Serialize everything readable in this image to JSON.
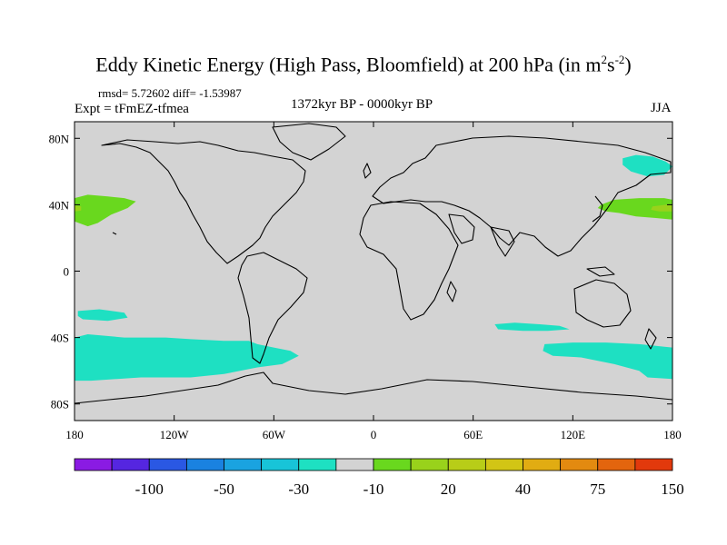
{
  "title": {
    "main": "Eddy Kinetic Energy (High Pass, Bloomfield) at 200 hPa (in m",
    "unit_a": "2",
    "unit_mid": "s",
    "unit_b": "-2",
    "close": ")"
  },
  "stats": "rmsd= 5.72602 diff= -1.53987",
  "experiment": "Expt = tFmEZ-tfmea",
  "period": "1372kyr BP - 0000kyr BP",
  "season": "JJA",
  "map": {
    "projection": "cylindrical-equidistant",
    "lon_range": [
      -180,
      180
    ],
    "lat_range": [
      -90,
      90
    ],
    "land_fill": "#d3d3d3",
    "coast_color": "#000000",
    "lat_ticks": [
      {
        "value": 80,
        "label": "80N"
      },
      {
        "value": 40,
        "label": "40N"
      },
      {
        "value": 0,
        "label": "0"
      },
      {
        "value": -40,
        "label": "40S"
      },
      {
        "value": -80,
        "label": "80S"
      }
    ],
    "lon_ticks": [
      {
        "value": -180,
        "label": "180"
      },
      {
        "value": -120,
        "label": "120W"
      },
      {
        "value": -60,
        "label": "60W"
      },
      {
        "value": 0,
        "label": "0"
      },
      {
        "value": 60,
        "label": "60E"
      },
      {
        "value": 120,
        "label": "120E"
      },
      {
        "value": 180,
        "label": "180"
      }
    ]
  },
  "colorbar": {
    "colors": [
      "#8a1be3",
      "#5526e0",
      "#2a58e3",
      "#1a82e0",
      "#1aa3e0",
      "#18c4d8",
      "#1ee0c2",
      "#d3d3d3",
      "#69d81e",
      "#99d21b",
      "#b8cd18",
      "#d2c515",
      "#e1ac12",
      "#e38a10",
      "#e3650e",
      "#e2390c"
    ],
    "labels": [
      {
        "after_box": 2,
        "text": "-100"
      },
      {
        "after_box": 4,
        "text": "-50"
      },
      {
        "after_box": 6,
        "text": "-30"
      },
      {
        "after_box": 8,
        "text": "-10"
      },
      {
        "after_box": 10,
        "text": "20"
      },
      {
        "after_box": 12,
        "text": "40"
      },
      {
        "after_box": 14,
        "text": "75"
      },
      {
        "after_box": 16,
        "text": "150"
      }
    ]
  },
  "anomaly_regions": [
    {
      "name": "north-pacific-east-positive",
      "level": "10 to 20",
      "color": "#69d81e",
      "points": [
        [
          -180,
          44
        ],
        [
          -172,
          46
        ],
        [
          -160,
          45
        ],
        [
          -150,
          44
        ],
        [
          -143,
          42
        ],
        [
          -148,
          38
        ],
        [
          -158,
          34
        ],
        [
          -166,
          29
        ],
        [
          -172,
          27
        ],
        [
          -180,
          30
        ]
      ]
    },
    {
      "name": "north-pacific-west-positive",
      "level": "10 to 20",
      "color": "#69d81e",
      "points": [
        [
          137,
          40
        ],
        [
          145,
          43
        ],
        [
          160,
          44
        ],
        [
          175,
          44
        ],
        [
          180,
          43
        ],
        [
          180,
          31
        ],
        [
          170,
          32
        ],
        [
          158,
          33
        ],
        [
          148,
          35
        ],
        [
          140,
          36
        ],
        [
          135,
          38
        ]
      ]
    },
    {
      "name": "north-pacific-core",
      "level": "20 to 30",
      "color": "#99d21b",
      "points": [
        [
          168,
          39
        ],
        [
          176,
          40
        ],
        [
          180,
          39.5
        ],
        [
          180,
          36
        ],
        [
          172,
          36
        ],
        [
          167,
          37
        ]
      ]
    },
    {
      "name": "north-pacific-core-east",
      "level": "20 to 30",
      "color": "#99d21b",
      "points": [
        [
          -180,
          39.5
        ],
        [
          -176,
          39
        ],
        [
          -176,
          36.5
        ],
        [
          -180,
          36
        ]
      ]
    },
    {
      "name": "bering-negative",
      "level": "-10 to -30",
      "color": "#1ee0c2",
      "points": [
        [
          150,
          68
        ],
        [
          158,
          70
        ],
        [
          168,
          69
        ],
        [
          176,
          66
        ],
        [
          180,
          63
        ],
        [
          175,
          58
        ],
        [
          165,
          57
        ],
        [
          155,
          60
        ],
        [
          150,
          64
        ]
      ]
    },
    {
      "name": "south-pacific-negative",
      "level": "-10 to -30",
      "color": "#1ee0c2",
      "points": [
        [
          -180,
          -40
        ],
        [
          -172,
          -38
        ],
        [
          -150,
          -40
        ],
        [
          -125,
          -40
        ],
        [
          -110,
          -41
        ],
        [
          -90,
          -42
        ],
        [
          -75,
          -42
        ],
        [
          -70,
          -44
        ],
        [
          -60,
          -46
        ],
        [
          -50,
          -48
        ],
        [
          -45,
          -51
        ],
        [
          -55,
          -56
        ],
        [
          -70,
          -58
        ],
        [
          -90,
          -62
        ],
        [
          -110,
          -64
        ],
        [
          -140,
          -64
        ],
        [
          -170,
          -66
        ],
        [
          -180,
          -66
        ]
      ]
    },
    {
      "name": "southwest-pacific-small-negative",
      "level": "-10 to -30",
      "color": "#1ee0c2",
      "points": [
        [
          -178,
          -24
        ],
        [
          -165,
          -23
        ],
        [
          -150,
          -25
        ],
        [
          -148,
          -28
        ],
        [
          -160,
          -30
        ],
        [
          -175,
          -29
        ],
        [
          -178,
          -27
        ]
      ]
    },
    {
      "name": "south-indian-negative",
      "level": "-10 to -30",
      "color": "#1ee0c2",
      "points": [
        [
          73,
          -32
        ],
        [
          85,
          -31
        ],
        [
          100,
          -32
        ],
        [
          112,
          -33
        ],
        [
          118,
          -35
        ],
        [
          105,
          -36
        ],
        [
          90,
          -36
        ],
        [
          75,
          -35
        ]
      ]
    },
    {
      "name": "southern-ocean-au-negative",
      "level": "-10 to -30",
      "color": "#1ee0c2",
      "points": [
        [
          103,
          -44
        ],
        [
          120,
          -43
        ],
        [
          140,
          -43
        ],
        [
          160,
          -44
        ],
        [
          170,
          -45
        ],
        [
          180,
          -46
        ],
        [
          180,
          -65
        ],
        [
          165,
          -64
        ],
        [
          160,
          -60
        ],
        [
          145,
          -56
        ],
        [
          125,
          -52
        ],
        [
          108,
          -51
        ],
        [
          102,
          -48
        ]
      ]
    }
  ]
}
